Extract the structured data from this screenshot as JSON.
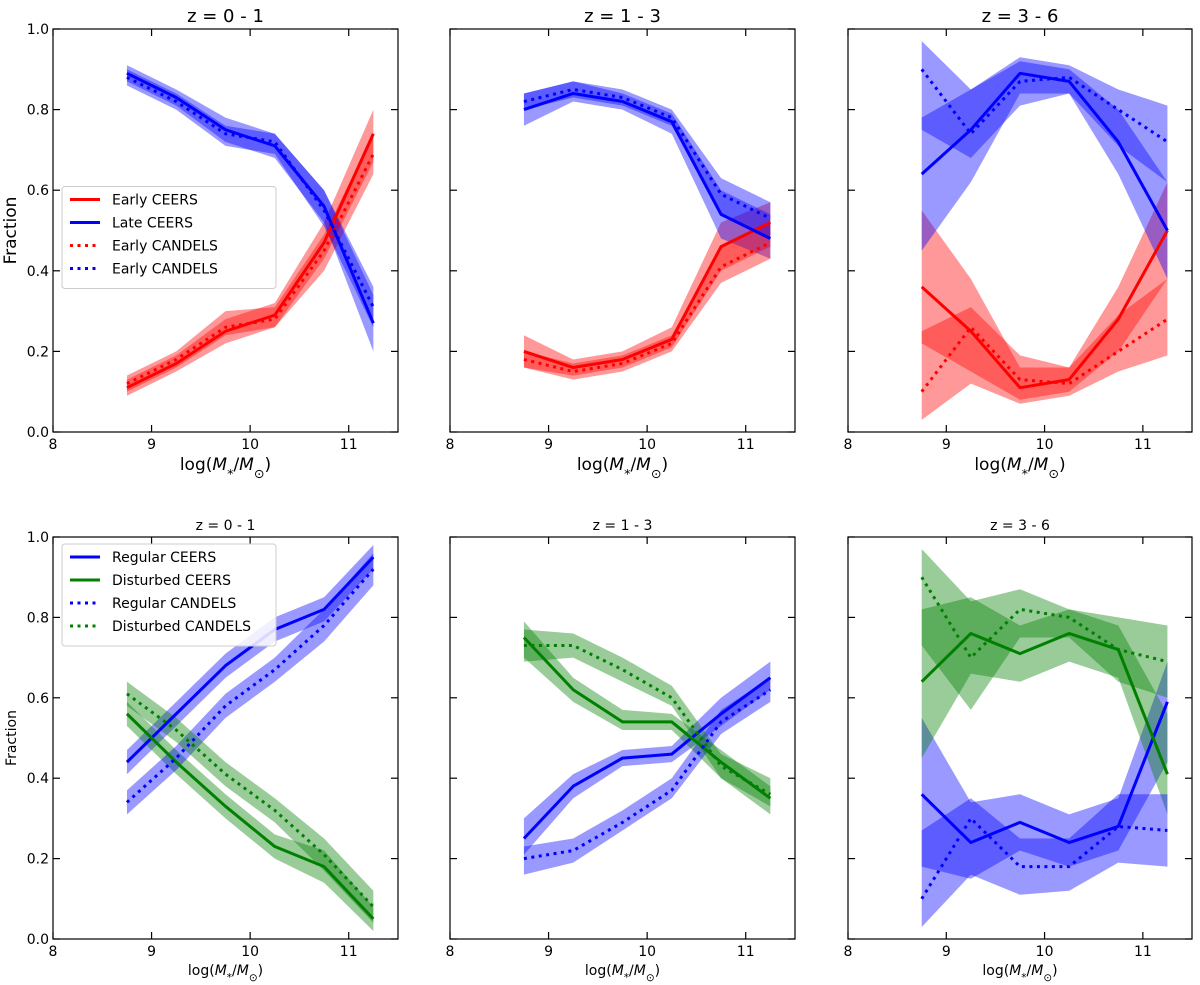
{
  "chart_data": [
    {
      "type": "line",
      "title": "z = 0 - 1",
      "xlabel": "log(M*/M⊙)",
      "ylabel": "Fraction",
      "xlim": [
        8,
        11.5
      ],
      "ylim": [
        0,
        1
      ],
      "xticks": [
        8,
        9,
        10,
        11
      ],
      "xtick_labels": [
        "8",
        "9",
        "10",
        "11"
      ],
      "yticks": [
        0,
        0.2,
        0.4,
        0.6,
        0.8,
        1.0
      ],
      "ytick_labels": [
        "0.0",
        "0.2",
        "0.4",
        "0.6",
        "0.8",
        "1.0"
      ],
      "legend": "center-left",
      "x": [
        8.75,
        9.25,
        9.75,
        10.25,
        10.75,
        11.25
      ],
      "series": [
        {
          "name": "Early CEERS",
          "color": "#ff0000",
          "style": "solid",
          "values": [
            0.11,
            0.17,
            0.25,
            0.29,
            0.47,
            0.74
          ],
          "lower": [
            0.09,
            0.15,
            0.22,
            0.26,
            0.43,
            0.67
          ],
          "upper": [
            0.13,
            0.19,
            0.28,
            0.32,
            0.52,
            0.8
          ]
        },
        {
          "name": "Late CEERS",
          "color": "#0000ff",
          "style": "solid",
          "values": [
            0.89,
            0.83,
            0.75,
            0.71,
            0.56,
            0.27
          ],
          "lower": [
            0.87,
            0.81,
            0.72,
            0.68,
            0.52,
            0.2
          ],
          "upper": [
            0.91,
            0.85,
            0.78,
            0.74,
            0.6,
            0.34
          ]
        },
        {
          "name": "Early CANDELS",
          "color": "#ff0000",
          "style": "dotted",
          "values": [
            0.12,
            0.18,
            0.26,
            0.28,
            0.45,
            0.69
          ],
          "lower": [
            0.1,
            0.16,
            0.24,
            0.26,
            0.4,
            0.64
          ],
          "upper": [
            0.14,
            0.2,
            0.3,
            0.31,
            0.49,
            0.74
          ]
        },
        {
          "name": "Early CANDELS",
          "color": "#0000ff",
          "style": "dotted",
          "values": [
            0.88,
            0.82,
            0.74,
            0.72,
            0.55,
            0.31
          ],
          "lower": [
            0.86,
            0.8,
            0.71,
            0.69,
            0.51,
            0.26
          ],
          "upper": [
            0.9,
            0.84,
            0.76,
            0.74,
            0.6,
            0.36
          ]
        }
      ]
    },
    {
      "type": "line",
      "title": "z = 1 - 3",
      "xlabel": "log(M*/M⊙)",
      "ylabel": "",
      "xlim": [
        8,
        11.5
      ],
      "ylim": [
        0,
        1
      ],
      "xticks": [
        8,
        9,
        10,
        11
      ],
      "xtick_labels": [
        "8",
        "9",
        "10",
        "11"
      ],
      "yticks": [
        0,
        0.2,
        0.4,
        0.6,
        0.8,
        1.0
      ],
      "ytick_labels": [],
      "legend": "none",
      "x": [
        8.75,
        9.25,
        9.75,
        10.25,
        10.75,
        11.25
      ],
      "series": [
        {
          "name": "",
          "color": "#ff0000",
          "style": "solid",
          "values": [
            0.2,
            0.16,
            0.18,
            0.23,
            0.46,
            0.52
          ],
          "lower": [
            0.16,
            0.14,
            0.16,
            0.21,
            0.4,
            0.46
          ],
          "upper": [
            0.24,
            0.18,
            0.2,
            0.26,
            0.52,
            0.57
          ]
        },
        {
          "name": "",
          "color": "#0000ff",
          "style": "solid",
          "values": [
            0.8,
            0.84,
            0.82,
            0.77,
            0.54,
            0.48
          ],
          "lower": [
            0.76,
            0.82,
            0.8,
            0.74,
            0.48,
            0.43
          ],
          "upper": [
            0.84,
            0.87,
            0.84,
            0.79,
            0.6,
            0.54
          ]
        },
        {
          "name": "",
          "color": "#ff0000",
          "style": "dotted",
          "values": [
            0.18,
            0.15,
            0.17,
            0.22,
            0.41,
            0.47
          ],
          "lower": [
            0.16,
            0.13,
            0.15,
            0.2,
            0.37,
            0.43
          ],
          "upper": [
            0.2,
            0.17,
            0.19,
            0.24,
            0.46,
            0.52
          ]
        },
        {
          "name": "",
          "color": "#0000ff",
          "style": "dotted",
          "values": [
            0.82,
            0.85,
            0.83,
            0.78,
            0.59,
            0.53
          ],
          "lower": [
            0.8,
            0.83,
            0.81,
            0.76,
            0.54,
            0.48
          ],
          "upper": [
            0.84,
            0.87,
            0.85,
            0.8,
            0.63,
            0.57
          ]
        }
      ]
    },
    {
      "type": "line",
      "title": "z = 3 - 6",
      "xlabel": "log(M*/M⊙)",
      "ylabel": "",
      "xlim": [
        8,
        11.5
      ],
      "ylim": [
        0,
        1
      ],
      "xticks": [
        8,
        9,
        10,
        11
      ],
      "xtick_labels": [
        "8",
        "9",
        "10",
        "11"
      ],
      "yticks": [
        0,
        0.2,
        0.4,
        0.6,
        0.8,
        1.0
      ],
      "ytick_labels": [],
      "legend": "none",
      "x": [
        8.75,
        9.25,
        9.75,
        10.25,
        10.75,
        11.25
      ],
      "series": [
        {
          "name": "",
          "color": "#ff0000",
          "style": "solid",
          "values": [
            0.36,
            0.25,
            0.11,
            0.13,
            0.28,
            0.5
          ],
          "lower": [
            0.22,
            0.15,
            0.08,
            0.1,
            0.2,
            0.38
          ],
          "upper": [
            0.55,
            0.38,
            0.16,
            0.16,
            0.36,
            0.62
          ]
        },
        {
          "name": "",
          "color": "#0000ff",
          "style": "solid",
          "values": [
            0.64,
            0.75,
            0.89,
            0.87,
            0.72,
            0.5
          ],
          "lower": [
            0.45,
            0.62,
            0.84,
            0.84,
            0.64,
            0.38
          ],
          "upper": [
            0.78,
            0.85,
            0.92,
            0.9,
            0.8,
            0.62
          ]
        },
        {
          "name": "",
          "color": "#ff0000",
          "style": "dotted",
          "values": [
            0.1,
            0.26,
            0.13,
            0.12,
            0.2,
            0.28
          ],
          "lower": [
            0.03,
            0.12,
            0.07,
            0.09,
            0.15,
            0.19
          ],
          "upper": [
            0.25,
            0.31,
            0.19,
            0.16,
            0.29,
            0.38
          ]
        },
        {
          "name": "",
          "color": "#0000ff",
          "style": "dotted",
          "values": [
            0.9,
            0.74,
            0.87,
            0.88,
            0.8,
            0.72
          ],
          "lower": [
            0.75,
            0.68,
            0.81,
            0.84,
            0.71,
            0.62
          ],
          "upper": [
            0.97,
            0.85,
            0.93,
            0.91,
            0.85,
            0.81
          ]
        }
      ]
    },
    {
      "type": "line",
      "title": "z = 0 - 1",
      "xlabel": "log(M*/M⊙)",
      "ylabel": "Fraction",
      "xlim": [
        8,
        11.5
      ],
      "ylim": [
        0,
        1
      ],
      "xticks": [
        8,
        9,
        10,
        11
      ],
      "xtick_labels": [
        "8",
        "9",
        "10",
        "11"
      ],
      "yticks": [
        0,
        0.2,
        0.4,
        0.6,
        0.8,
        1.0
      ],
      "ytick_labels": [
        "0.0",
        "0.2",
        "0.4",
        "0.6",
        "0.8",
        "1.0"
      ],
      "legend": "top-left",
      "x": [
        8.75,
        9.25,
        9.75,
        10.25,
        10.75,
        11.25
      ],
      "series": [
        {
          "name": "Regular CEERS",
          "color": "#0000ff",
          "style": "solid",
          "values": [
            0.44,
            0.56,
            0.68,
            0.77,
            0.82,
            0.95
          ],
          "lower": [
            0.41,
            0.53,
            0.65,
            0.74,
            0.79,
            0.92
          ],
          "upper": [
            0.47,
            0.59,
            0.71,
            0.8,
            0.85,
            0.98
          ]
        },
        {
          "name": "Disturbed CEERS",
          "color": "#008000",
          "style": "solid",
          "values": [
            0.56,
            0.44,
            0.33,
            0.23,
            0.18,
            0.05
          ],
          "lower": [
            0.53,
            0.41,
            0.3,
            0.2,
            0.14,
            0.02
          ],
          "upper": [
            0.59,
            0.47,
            0.36,
            0.26,
            0.22,
            0.08
          ]
        },
        {
          "name": "Regular CANDELS",
          "color": "#0000ff",
          "style": "dotted",
          "values": [
            0.34,
            0.45,
            0.58,
            0.67,
            0.78,
            0.92
          ],
          "lower": [
            0.31,
            0.42,
            0.55,
            0.64,
            0.74,
            0.88
          ],
          "upper": [
            0.37,
            0.48,
            0.61,
            0.7,
            0.82,
            0.96
          ]
        },
        {
          "name": "Disturbed CANDELS",
          "color": "#008000",
          "style": "dotted",
          "values": [
            0.61,
            0.52,
            0.41,
            0.32,
            0.21,
            0.08
          ],
          "lower": [
            0.58,
            0.49,
            0.38,
            0.29,
            0.17,
            0.04
          ],
          "upper": [
            0.64,
            0.55,
            0.44,
            0.35,
            0.25,
            0.12
          ]
        }
      ]
    },
    {
      "type": "line",
      "title": "z = 1 - 3",
      "xlabel": "log(M*/M⊙)",
      "ylabel": "",
      "xlim": [
        8,
        11.5
      ],
      "ylim": [
        0,
        1
      ],
      "xticks": [
        8,
        9,
        10,
        11
      ],
      "xtick_labels": [
        "8",
        "9",
        "10",
        "11"
      ],
      "yticks": [
        0,
        0.2,
        0.4,
        0.6,
        0.8,
        1.0
      ],
      "ytick_labels": [],
      "legend": "none",
      "x": [
        8.75,
        9.25,
        9.75,
        10.25,
        10.75,
        11.25
      ],
      "series": [
        {
          "name": "",
          "color": "#0000ff",
          "style": "solid",
          "values": [
            0.25,
            0.38,
            0.45,
            0.46,
            0.56,
            0.65
          ],
          "lower": [
            0.21,
            0.35,
            0.43,
            0.44,
            0.53,
            0.62
          ],
          "upper": [
            0.3,
            0.41,
            0.47,
            0.48,
            0.6,
            0.69
          ]
        },
        {
          "name": "",
          "color": "#008000",
          "style": "solid",
          "values": [
            0.75,
            0.62,
            0.54,
            0.54,
            0.44,
            0.35
          ],
          "lower": [
            0.7,
            0.59,
            0.52,
            0.52,
            0.4,
            0.31
          ],
          "upper": [
            0.79,
            0.65,
            0.57,
            0.56,
            0.47,
            0.38
          ]
        },
        {
          "name": "",
          "color": "#0000ff",
          "style": "dotted",
          "values": [
            0.2,
            0.22,
            0.29,
            0.37,
            0.54,
            0.62
          ],
          "lower": [
            0.16,
            0.19,
            0.27,
            0.35,
            0.51,
            0.59
          ],
          "upper": [
            0.23,
            0.25,
            0.32,
            0.4,
            0.57,
            0.65
          ]
        },
        {
          "name": "",
          "color": "#008000",
          "style": "dotted",
          "values": [
            0.73,
            0.73,
            0.67,
            0.6,
            0.43,
            0.36
          ],
          "lower": [
            0.69,
            0.7,
            0.64,
            0.58,
            0.4,
            0.33
          ],
          "upper": [
            0.77,
            0.76,
            0.7,
            0.63,
            0.46,
            0.4
          ]
        }
      ]
    },
    {
      "type": "line",
      "title": "z = 3 - 6",
      "xlabel": "log(M*/M⊙)",
      "ylabel": "",
      "xlim": [
        8,
        11.5
      ],
      "ylim": [
        0,
        1
      ],
      "xticks": [
        8,
        9,
        10,
        11
      ],
      "xtick_labels": [
        "8",
        "9",
        "10",
        "11"
      ],
      "yticks": [
        0,
        0.2,
        0.4,
        0.6,
        0.8,
        1.0
      ],
      "ytick_labels": [],
      "legend": "none",
      "x": [
        8.75,
        9.25,
        9.75,
        10.25,
        10.75,
        11.25
      ],
      "series": [
        {
          "name": "",
          "color": "#0000ff",
          "style": "solid",
          "values": [
            0.36,
            0.24,
            0.29,
            0.24,
            0.28,
            0.59
          ],
          "lower": [
            0.18,
            0.15,
            0.22,
            0.18,
            0.22,
            0.44
          ],
          "upper": [
            0.55,
            0.34,
            0.36,
            0.31,
            0.35,
            0.69
          ]
        },
        {
          "name": "",
          "color": "#008000",
          "style": "solid",
          "values": [
            0.64,
            0.76,
            0.71,
            0.76,
            0.72,
            0.41
          ],
          "lower": [
            0.45,
            0.66,
            0.64,
            0.69,
            0.65,
            0.31
          ],
          "upper": [
            0.82,
            0.85,
            0.78,
            0.82,
            0.78,
            0.56
          ]
        },
        {
          "name": "",
          "color": "#0000ff",
          "style": "dotted",
          "values": [
            0.1,
            0.3,
            0.18,
            0.18,
            0.28,
            0.27
          ],
          "lower": [
            0.03,
            0.16,
            0.11,
            0.12,
            0.19,
            0.18
          ],
          "upper": [
            0.27,
            0.35,
            0.25,
            0.25,
            0.36,
            0.36
          ]
        },
        {
          "name": "",
          "color": "#008000",
          "style": "dotted",
          "values": [
            0.9,
            0.7,
            0.82,
            0.8,
            0.72,
            0.69
          ],
          "lower": [
            0.73,
            0.57,
            0.75,
            0.75,
            0.64,
            0.6
          ],
          "upper": [
            0.97,
            0.84,
            0.87,
            0.82,
            0.8,
            0.78
          ]
        }
      ]
    }
  ]
}
